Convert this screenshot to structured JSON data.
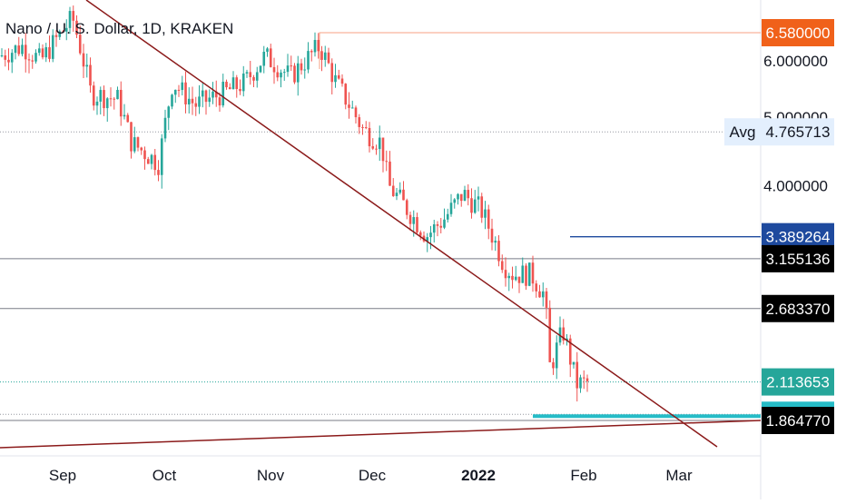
{
  "header": {
    "title": "Nano / U. S. Dollar, 1D, KRAKEN"
  },
  "colors": {
    "up": "#26a69a",
    "down": "#ef5350",
    "trendline": "#8b1a1a",
    "price_line": "#26a69a",
    "resistance": "#1e4a9e",
    "support_box": "#26bcc7"
  },
  "chart_data": {
    "type": "candlestick",
    "symbol": "Nano / U. S. Dollar",
    "interval": "1D",
    "exchange": "KRAKEN",
    "x_ticks": [
      "Sep",
      "Oct",
      "Nov",
      "Dec",
      "2022",
      "Feb",
      "Mar"
    ],
    "y_ticks": [
      "6.000000",
      "5.000000",
      "4.000000"
    ],
    "y_scale": "log",
    "price_labels": [
      {
        "name": "high-marker",
        "value": "6.580000",
        "color": "#f0611a"
      },
      {
        "name": "avg",
        "prefix": "Avg",
        "value": "4.765713",
        "color": "#e3effd"
      },
      {
        "name": "resistance",
        "value": "3.389264",
        "color": "#1e4a9e"
      },
      {
        "name": "level-1",
        "value": "3.155136",
        "color": "#000000"
      },
      {
        "name": "level-2",
        "value": "2.683370",
        "color": "#000000"
      },
      {
        "name": "last-price",
        "value": "2.113653",
        "color": "#26a69a"
      },
      {
        "name": "support",
        "value": "1.896660",
        "color": "#26bcc7"
      },
      {
        "name": "level-3",
        "value": "1.864770",
        "color": "#000000"
      }
    ]
  }
}
